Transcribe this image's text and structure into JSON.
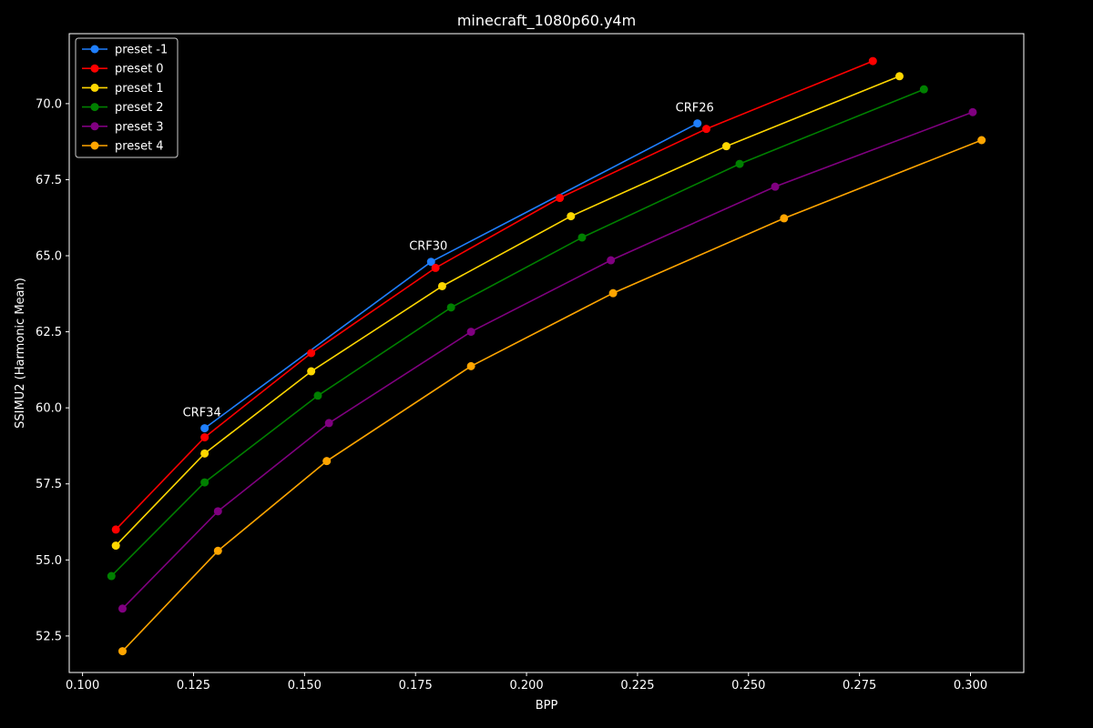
{
  "chart_data": {
    "type": "line",
    "title": "minecraft_1080p60.y4m",
    "xlabel": "BPP",
    "ylabel": "SSIMU2 (Harmonic Mean)",
    "xlim": [
      0.097,
      0.312
    ],
    "ylim": [
      51.3,
      72.3
    ],
    "xticks": [
      "0.100",
      "0.125",
      "0.150",
      "0.175",
      "0.200",
      "0.225",
      "0.250",
      "0.275",
      "0.300"
    ],
    "yticks": [
      "52.5",
      "55.0",
      "57.5",
      "60.0",
      "62.5",
      "65.0",
      "67.5",
      "70.0"
    ],
    "grid": false,
    "legend_position": "top-left",
    "series": [
      {
        "name": "preset -1",
        "color": "#1f7fff",
        "x": [
          0.1275,
          0.1785,
          0.2385
        ],
        "y": [
          59.33,
          64.8,
          69.35
        ]
      },
      {
        "name": "preset 0",
        "color": "#ff0000",
        "x": [
          0.1075,
          0.1275,
          0.1515,
          0.1795,
          0.2075,
          0.2405,
          0.278
        ],
        "y": [
          56.0,
          59.03,
          61.8,
          64.6,
          66.9,
          69.17,
          71.4
        ]
      },
      {
        "name": "preset 1",
        "color": "#ffd700",
        "x": [
          0.1075,
          0.1275,
          0.1515,
          0.181,
          0.21,
          0.245,
          0.284
        ],
        "y": [
          55.47,
          58.5,
          61.2,
          64.0,
          66.3,
          68.6,
          70.9
        ]
      },
      {
        "name": "preset 2",
        "color": "#008000",
        "x": [
          0.1065,
          0.1275,
          0.153,
          0.183,
          0.2125,
          0.248,
          0.2895
        ],
        "y": [
          54.47,
          57.55,
          60.4,
          63.3,
          65.6,
          68.02,
          70.47
        ]
      },
      {
        "name": "preset 3",
        "color": "#800080",
        "x": [
          0.109,
          0.1305,
          0.1555,
          0.1875,
          0.219,
          0.256,
          0.3005
        ],
        "y": [
          53.4,
          56.6,
          59.5,
          62.5,
          64.85,
          67.27,
          69.72
        ]
      },
      {
        "name": "preset 4",
        "color": "#ffa500",
        "x": [
          0.109,
          0.1305,
          0.155,
          0.1875,
          0.2195,
          0.258,
          0.3025
        ],
        "y": [
          52.0,
          55.3,
          58.25,
          61.37,
          63.77,
          66.23,
          68.8
        ]
      }
    ],
    "annotations": [
      {
        "text": "CRF34",
        "x": 0.1275,
        "y": 59.33
      },
      {
        "text": "CRF30",
        "x": 0.1785,
        "y": 64.8
      },
      {
        "text": "CRF26",
        "x": 0.2385,
        "y": 69.35
      }
    ]
  }
}
